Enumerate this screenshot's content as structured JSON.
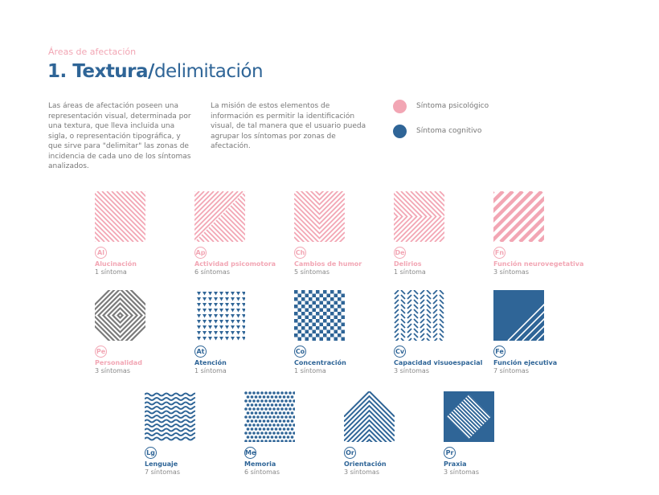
{
  "header": {
    "kicker": "Áreas de afectación",
    "title_bold": "1. Textura/",
    "title_light": "delimitación"
  },
  "intro": [
    "Las áreas de afectación poseen una representación visual, determinada por una textura, que lleva incluida una sigla, o representación tipográfica, y que sirve para \"delimitar\" las zonas de incidencia de cada uno de los síntomas analizados.",
    "La misión de estos elementos de información es permitir la identificación visual, de tal manera que el usuario pueda agrupar los síntomas por zonas de afectación."
  ],
  "legend": [
    {
      "label": "Síntoma psicológico",
      "color": "#f2a6b4"
    },
    {
      "label": "Síntoma cognitivo",
      "color": "#2f6597"
    }
  ],
  "tiles": [
    {
      "abbr": "Al",
      "name": "Alucinación",
      "count": "1 síntoma",
      "color": "#f2a6b4"
    },
    {
      "abbr": "Ap",
      "name": "Actividad psicomotora",
      "count": "6 síntomas",
      "color": "#f2a6b4"
    },
    {
      "abbr": "Ch",
      "name": "Cambios de humor",
      "count": "5 síntomas",
      "color": "#f2a6b4"
    },
    {
      "abbr": "De",
      "name": "Delirios",
      "count": "1 síntoma",
      "color": "#f2a6b4"
    },
    {
      "abbr": "Fn",
      "name": "Función neurovegetativa",
      "count": "3 síntomas",
      "color": "#f2a6b4"
    },
    {
      "abbr": "Pe",
      "name": "Personalidad",
      "count": "3 síntomas",
      "color": "#f2a6b4"
    },
    {
      "abbr": "At",
      "name": "Atención",
      "count": "1 síntoma",
      "color": "#2f6597"
    },
    {
      "abbr": "Co",
      "name": "Concentración",
      "count": "1 síntoma",
      "color": "#2f6597"
    },
    {
      "abbr": "Cv",
      "name": "Capacidad visuoespacial",
      "count": "3 síntomas",
      "color": "#2f6597"
    },
    {
      "abbr": "Fe",
      "name": "Función ejecutiva",
      "count": "7 síntomas",
      "color": "#2f6597"
    },
    {
      "abbr": "Lg",
      "name": "Lenguaje",
      "count": "7 síntomas",
      "color": "#2f6597"
    },
    {
      "abbr": "Me",
      "name": "Memoria",
      "count": "6 síntomas",
      "color": "#2f6597"
    },
    {
      "abbr": "Or",
      "name": "Orientación",
      "count": "3 síntomas",
      "color": "#2f6597"
    },
    {
      "abbr": "Pr",
      "name": "Praxia",
      "count": "3 síntomas",
      "color": "#2f6597"
    }
  ]
}
